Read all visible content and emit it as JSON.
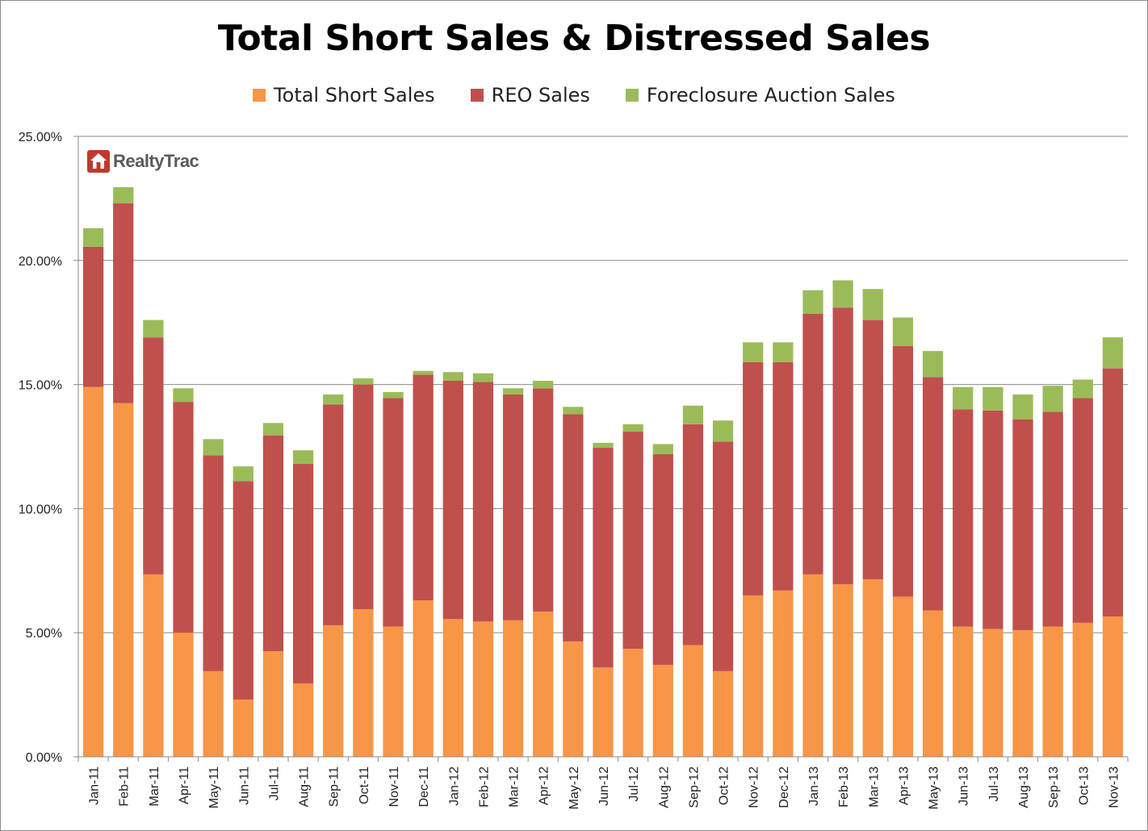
{
  "chart_data": {
    "type": "bar",
    "stacked": true,
    "title": "Total Short Sales & Distressed Sales",
    "xlabel": "",
    "ylabel": "",
    "ylim": [
      0,
      25
    ],
    "y_tick_values": [
      0,
      5,
      10,
      15,
      20,
      25
    ],
    "y_tick_labels": [
      "0.00%",
      "5.00%",
      "10.00%",
      "15.00%",
      "20.00%",
      "25.00%"
    ],
    "grid": true,
    "legend_position": "top-center",
    "categories": [
      "Jan-11",
      "Feb-11",
      "Mar-11",
      "Apr-11",
      "May-11",
      "Jun-11",
      "Jul-11",
      "Aug-11",
      "Sep-11",
      "Oct-11",
      "Nov-11",
      "Dec-11",
      "Jan-12",
      "Feb-12",
      "Mar-12",
      "Apr-12",
      "May-12",
      "Jun-12",
      "Jul-12",
      "Aug-12",
      "Sep-12",
      "Oct-12",
      "Nov-12",
      "Dec-12",
      "Jan-13",
      "Feb-13",
      "Mar-13",
      "Apr-13",
      "May-13",
      "Jun-13",
      "Jul-13",
      "Aug-13",
      "Sep-13",
      "Oct-13",
      "Nov-13"
    ],
    "series": [
      {
        "name": "Total Short Sales",
        "color": "#f79646",
        "values": [
          14.9,
          14.25,
          7.35,
          5.0,
          3.45,
          2.3,
          4.25,
          2.95,
          5.3,
          5.95,
          5.25,
          6.3,
          5.55,
          5.45,
          5.5,
          5.85,
          4.65,
          3.6,
          4.35,
          3.7,
          4.5,
          3.45,
          6.5,
          6.7,
          7.35,
          6.95,
          7.15,
          6.45,
          5.9,
          5.25,
          5.15,
          5.1,
          5.25,
          5.4,
          5.65
        ]
      },
      {
        "name": "REO Sales",
        "color": "#c0504d",
        "values": [
          5.65,
          8.05,
          9.55,
          9.3,
          8.7,
          8.8,
          8.7,
          8.85,
          8.9,
          9.05,
          9.2,
          9.1,
          9.6,
          9.65,
          9.1,
          9.0,
          9.15,
          8.85,
          8.75,
          8.5,
          8.9,
          9.25,
          9.4,
          9.2,
          10.5,
          11.15,
          10.45,
          10.1,
          9.4,
          8.75,
          8.8,
          8.5,
          8.65,
          9.05,
          10.0
        ]
      },
      {
        "name": "Foreclosure Auction Sales",
        "color": "#9bbb59",
        "values": [
          0.75,
          0.65,
          0.7,
          0.55,
          0.65,
          0.6,
          0.5,
          0.55,
          0.4,
          0.25,
          0.25,
          0.15,
          0.35,
          0.35,
          0.25,
          0.3,
          0.3,
          0.2,
          0.3,
          0.4,
          0.75,
          0.85,
          0.8,
          0.8,
          0.95,
          1.1,
          1.25,
          1.15,
          1.05,
          0.9,
          0.95,
          1.0,
          1.05,
          0.75,
          1.25
        ]
      }
    ]
  },
  "watermark": {
    "text": "RealtyTrac",
    "icon": "house-icon",
    "color": "#c0392b"
  }
}
